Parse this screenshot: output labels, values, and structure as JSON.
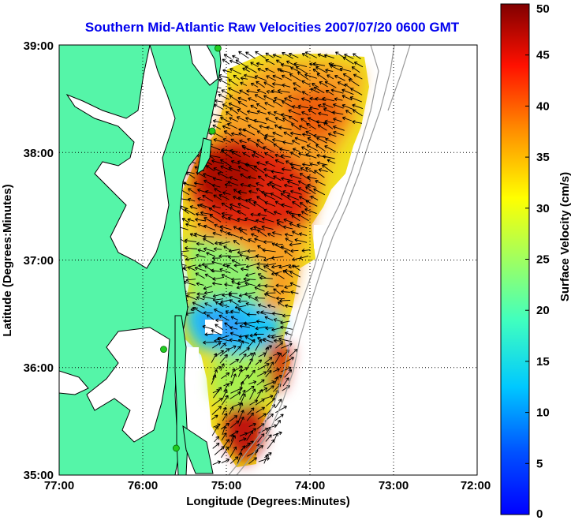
{
  "title": "Southern Mid-Atlantic Raw Velocities 2007/07/20 0600 GMT",
  "xlabel": "Longitude (Degrees:Minutes)",
  "ylabel": "Latitude (Degrees:Minutes)",
  "x_ticks": [
    "77:00",
    "76:00",
    "75:00",
    "74:00",
    "73:00",
    "72:00"
  ],
  "y_ticks": [
    "39:00",
    "38:00",
    "37:00",
    "36:00",
    "35:00"
  ],
  "colorbar": {
    "label": "Surface Velocity (cm/s)",
    "ticks": [
      "0",
      "5",
      "10",
      "15",
      "20",
      "25",
      "30",
      "35",
      "40",
      "45",
      "50"
    ],
    "range": [
      0,
      50
    ],
    "colormap": "jet"
  },
  "colors": {
    "land": "#55f5a8",
    "coast": "#000000",
    "title": "#0000ee",
    "station": "#22cc22",
    "bathymetry": "#9a9a9a"
  },
  "map": {
    "lon_range": [
      -77,
      -72
    ],
    "lat_range": [
      35,
      39
    ],
    "grid": "dotted",
    "stations": [
      {
        "lon": -75.1,
        "lat": 38.97
      },
      {
        "lon": -75.17,
        "lat": 38.2
      },
      {
        "lon": -75.75,
        "lat": 36.17
      },
      {
        "lon": -75.6,
        "lat": 35.25
      }
    ]
  }
}
